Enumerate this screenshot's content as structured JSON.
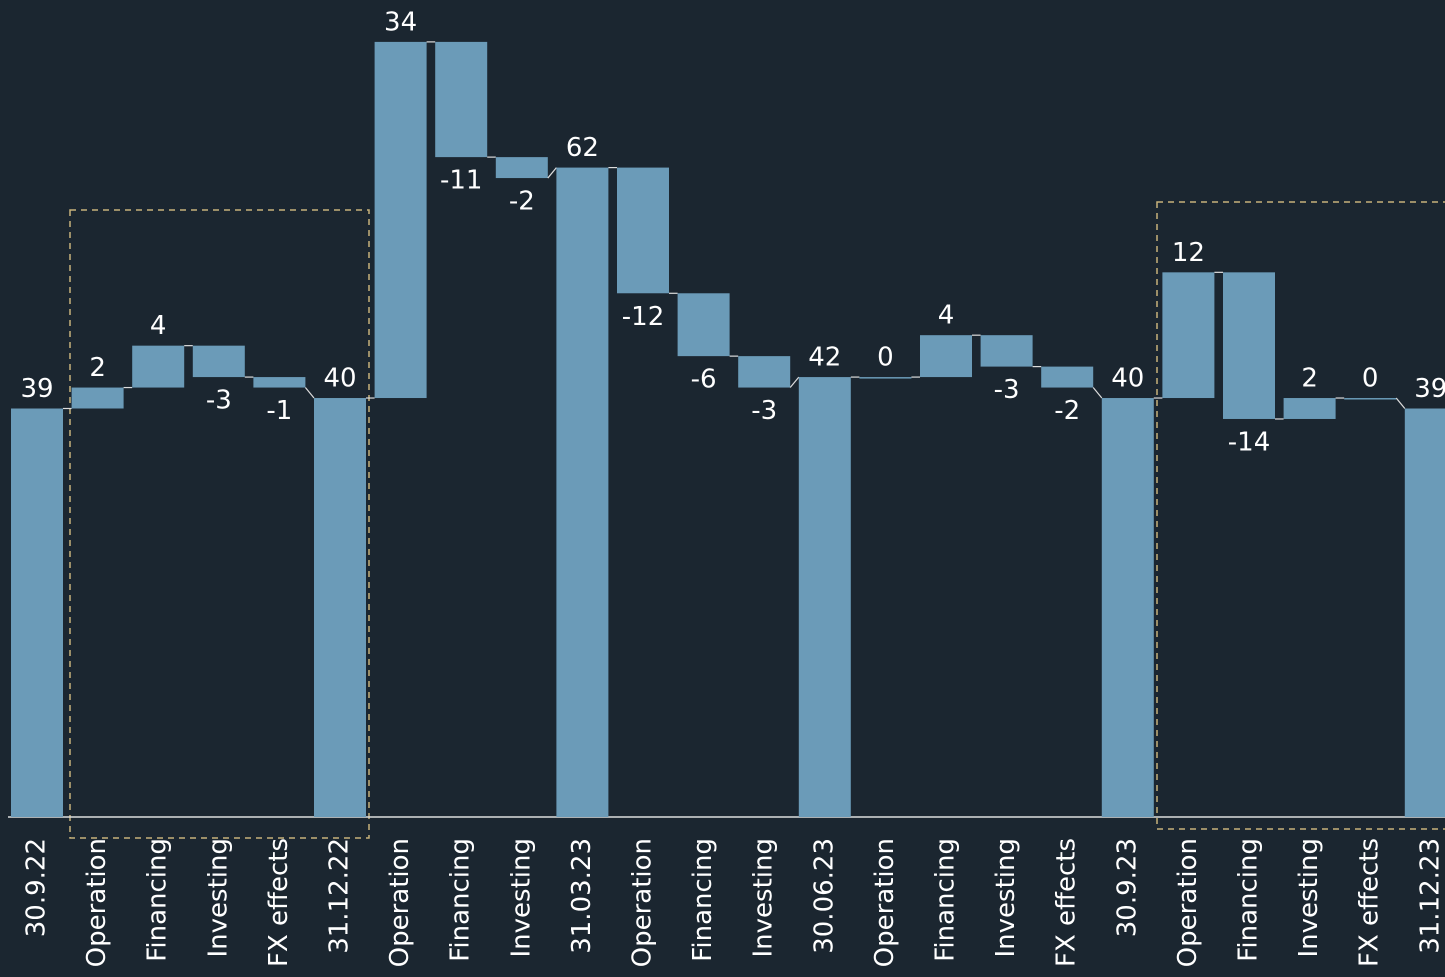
{
  "chart_data": {
    "type": "waterfall",
    "categories": [
      "30.9.22",
      "Operation",
      "Financing",
      "Investing",
      "FX effects",
      "31.12.22",
      "Operation",
      "Financing",
      "Investing",
      "31.03.23",
      "Operation",
      "Financing",
      "Investing",
      "30.06.23",
      "Operation",
      "Financing",
      "Investing",
      "FX effects",
      "30.9.23",
      "Operation",
      "Financing",
      "Investing",
      "FX effects",
      "31.12.23"
    ],
    "values": [
      39,
      2,
      4,
      -3,
      -1,
      40,
      34,
      -11,
      -2,
      62,
      -12,
      -6,
      -3,
      42,
      0,
      4,
      -3,
      -2,
      40,
      12,
      -14,
      2,
      0,
      39
    ],
    "is_total": [
      true,
      false,
      false,
      false,
      false,
      true,
      false,
      false,
      false,
      true,
      false,
      false,
      false,
      true,
      false,
      false,
      false,
      false,
      true,
      false,
      false,
      false,
      false,
      true
    ],
    "color": "#6b9bb8",
    "ylim": [
      0,
      78
    ]
  }
}
